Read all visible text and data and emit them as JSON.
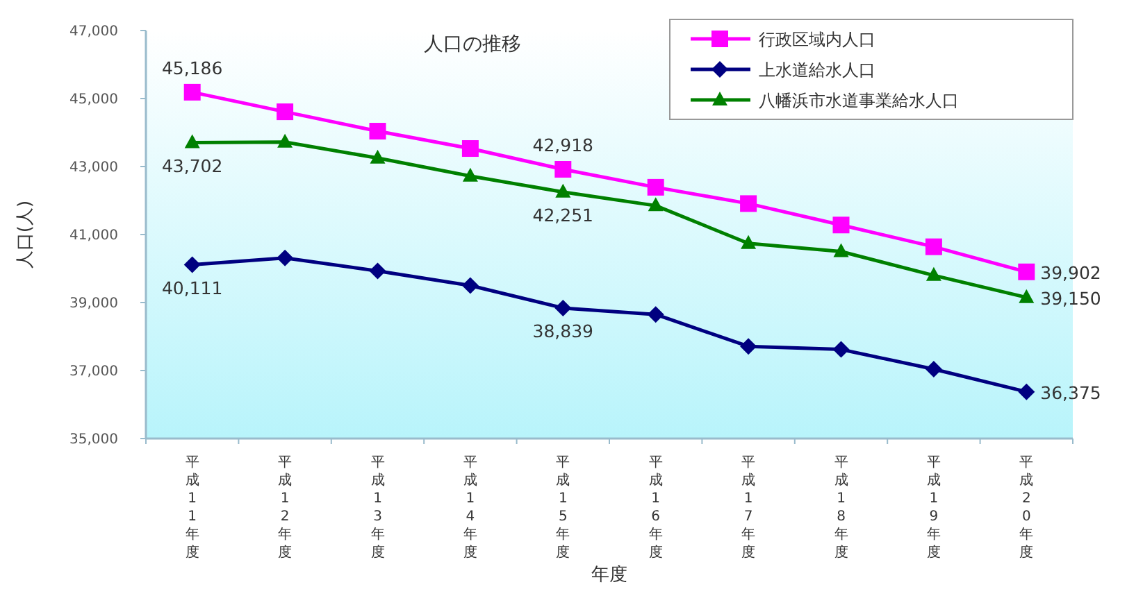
{
  "chart_data": {
    "type": "line",
    "title": "人口の推移",
    "xlabel": "年度",
    "ylabel": "人口(人)",
    "categories": [
      "平成11年度",
      "平成12年度",
      "平成13年度",
      "平成14年度",
      "平成15年度",
      "平成16年度",
      "平成17年度",
      "平成18年度",
      "平成19年度",
      "平成20年度"
    ],
    "series": [
      {
        "name": "行政区域内人口",
        "color": "#ff00ff",
        "marker": "square",
        "values": [
          45186,
          44610,
          44040,
          43530,
          42918,
          42390,
          41910,
          41280,
          40640,
          39902
        ],
        "value_labels": [
          "45,186",
          null,
          null,
          null,
          "42,918",
          null,
          null,
          null,
          null,
          "39,902"
        ]
      },
      {
        "name": "上水道給水人口",
        "color": "#000080",
        "marker": "diamond",
        "values": [
          40111,
          40310,
          39930,
          39500,
          38839,
          38650,
          37710,
          37620,
          37040,
          36375
        ],
        "value_labels": [
          "40,111",
          null,
          null,
          null,
          "38,839",
          null,
          null,
          null,
          null,
          "36,375"
        ]
      },
      {
        "name": "八幡浜市水道事業給水人口",
        "color": "#008000",
        "marker": "triangle",
        "values": [
          43702,
          43720,
          43250,
          42720,
          42251,
          41850,
          40740,
          40500,
          39800,
          39150
        ],
        "value_labels": [
          "43,702",
          null,
          null,
          null,
          "42,251",
          null,
          null,
          null,
          null,
          "39,150"
        ]
      }
    ],
    "ylim": [
      35000,
      47000
    ],
    "yticks": [
      {
        "value": 35000,
        "label": "35,000"
      },
      {
        "value": 37000,
        "label": "37,000"
      },
      {
        "value": 39000,
        "label": "39,000"
      },
      {
        "value": 41000,
        "label": "41,000"
      },
      {
        "value": 43000,
        "label": "43,000"
      },
      {
        "value": 45000,
        "label": "45,000"
      },
      {
        "value": 47000,
        "label": "47,000"
      }
    ],
    "grid": false,
    "legend": "top right",
    "line_style": "solid"
  }
}
